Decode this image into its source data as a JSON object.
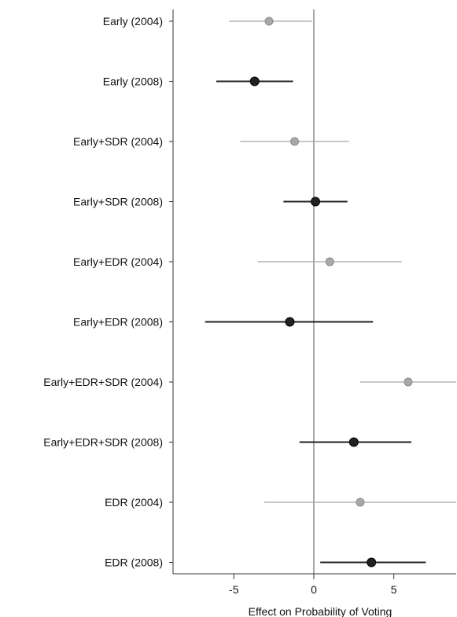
{
  "chart_data": {
    "type": "dot-errorbar",
    "xlabel": "Effect on Probability of Voting",
    "xlim": [
      -8.8,
      8.9
    ],
    "xticks": [
      -5,
      0,
      5
    ],
    "xtick_labels": [
      "-5",
      "0",
      "5"
    ],
    "reference_line": 0,
    "legend": "none",
    "grid": false,
    "categories": [
      "Early (2004)",
      "Early (2008)",
      "Early+SDR (2004)",
      "Early+SDR (2008)",
      "Early+EDR (2004)",
      "Early+EDR (2008)",
      "Early+EDR+SDR (2004)",
      "Early+EDR+SDR (2008)",
      "EDR (2004)",
      "EDR (2008)"
    ],
    "estimates": [
      -2.8,
      -3.7,
      -1.2,
      0.1,
      1.0,
      -1.5,
      5.9,
      2.5,
      2.9,
      3.6
    ],
    "lower": [
      -5.3,
      -6.1,
      -4.6,
      -1.9,
      -3.5,
      -6.8,
      2.9,
      -0.9,
      -3.1,
      0.4
    ],
    "upper": [
      -0.1,
      -1.3,
      2.2,
      2.1,
      5.5,
      3.7,
      8.9,
      6.1,
      8.9,
      7.0
    ],
    "year": [
      "2004",
      "2008",
      "2004",
      "2008",
      "2004",
      "2008",
      "2004",
      "2008",
      "2004",
      "2008"
    ],
    "colors": {
      "2004": "#a8a8a8",
      "2008": "#222222",
      "axis": "#333333",
      "refline": "#555555"
    }
  }
}
